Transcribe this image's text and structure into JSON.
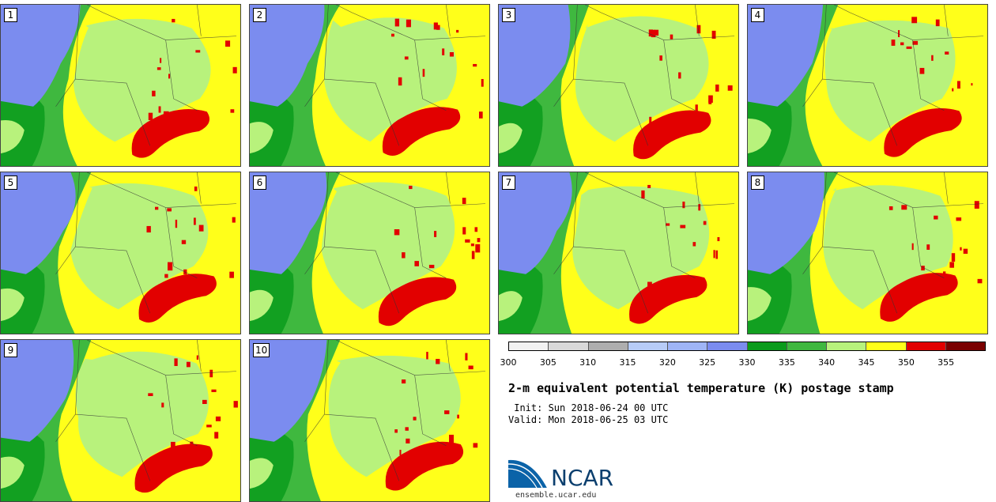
{
  "panels": [
    {
      "label": "1"
    },
    {
      "label": "2"
    },
    {
      "label": "3"
    },
    {
      "label": "4"
    },
    {
      "label": "5"
    },
    {
      "label": "6"
    },
    {
      "label": "7"
    },
    {
      "label": "8"
    },
    {
      "label": "9"
    },
    {
      "label": "10"
    }
  ],
  "colorbar": {
    "colors": [
      "#f2f2f2",
      "#d9d9d9",
      "#aeaeae",
      "#b7ccf7",
      "#9fb5f6",
      "#7b8cef",
      "#0a9b1c",
      "#3fb83f",
      "#b8f27c",
      "#ffff1a",
      "#e20000",
      "#7a0000"
    ],
    "tick_labels": [
      "300",
      "305",
      "310",
      "315",
      "320",
      "325",
      "330",
      "335",
      "340",
      "345",
      "350",
      "355"
    ]
  },
  "title": "2-m equivalent potential temperature (K) postage stamp",
  "init_line": " Init: Sun 2018-06-24 00 UTC",
  "valid_line": "Valid: Mon 2018-06-25 03 UTC",
  "logo": {
    "text": "NCAR",
    "url": "ensemble.ucar.edu"
  }
}
